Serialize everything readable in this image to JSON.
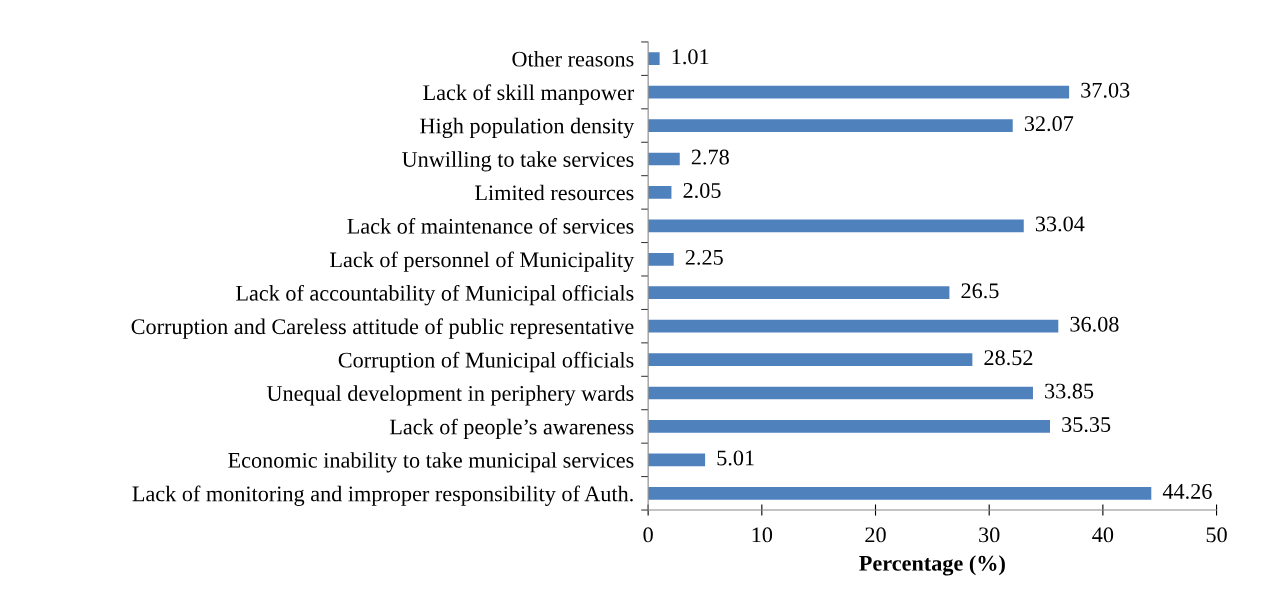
{
  "chart_data": {
    "type": "bar",
    "orientation": "horizontal",
    "xlabel": "Percentage (%)",
    "categories": [
      "Other reasons",
      "Lack of skill manpower",
      "High population density",
      "Unwilling to take services",
      "Limited resources",
      "Lack of maintenance of services",
      "Lack of personnel of Municipality",
      "Lack of accountability of Municipal officials",
      "Corruption and Careless attitude of public representative",
      "Corruption of Municipal officials",
      "Unequal development in periphery wards",
      "Lack of people’s awareness",
      "Economic inability to take municipal services",
      "Lack of monitoring and improper responsibility of Auth."
    ],
    "values": [
      1.01,
      37.03,
      32.07,
      2.78,
      2.05,
      33.04,
      2.25,
      26.5,
      36.08,
      28.52,
      33.85,
      35.35,
      5.01,
      44.26
    ],
    "color": "#4f81bd",
    "data_labels": true,
    "xlim": [
      0,
      50
    ],
    "xticks": [
      0,
      10,
      20,
      30,
      40,
      50
    ],
    "grid": false,
    "legend": false
  }
}
